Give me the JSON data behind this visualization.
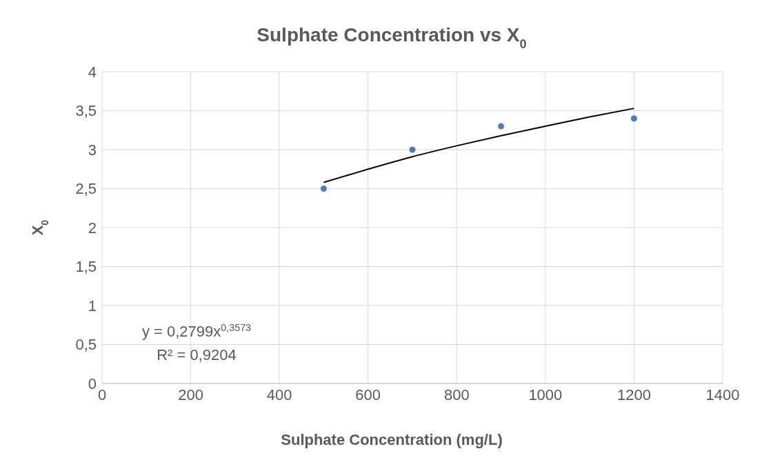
{
  "chart_data": {
    "type": "scatter",
    "title": "Sulphate Concentration vs X$_{0}$",
    "xlabel": "Sulphate Concentration (mg/L)",
    "ylabel": "X$_{0}$",
    "xlim": [
      0,
      1400
    ],
    "xticks": [
      0,
      200,
      400,
      600,
      800,
      1000,
      1200,
      1400
    ],
    "ylim": [
      0,
      4
    ],
    "yticks": [
      0,
      {
        "value": 0.5,
        "label": "0,5"
      },
      1,
      {
        "value": 1.5,
        "label": "1,5"
      },
      2,
      {
        "value": 2.5,
        "label": "2,5"
      },
      3,
      {
        "value": 3.5,
        "label": "3,5"
      },
      4
    ],
    "grid": true,
    "legend": false,
    "series": [
      {
        "color": "#4a7ebb",
        "marker": "circle",
        "x": [
          500,
          700,
          900,
          1200
        ],
        "values": [
          2.5,
          3.0,
          3.3,
          3.4
        ]
      },
      {
        "type": "line",
        "color": "#000000",
        "marker": "none",
        "line_style": "solid",
        "x": [
          500,
          600,
          700,
          800,
          900,
          1000,
          1100,
          1200
        ],
        "values": [
          2.58,
          2.75,
          2.91,
          3.05,
          3.18,
          3.3,
          3.42,
          3.53
        ]
      }
    ],
    "annotations": [
      "y = 0,2799x$^{0,3573}$",
      "R² = 0,9204"
    ]
  }
}
